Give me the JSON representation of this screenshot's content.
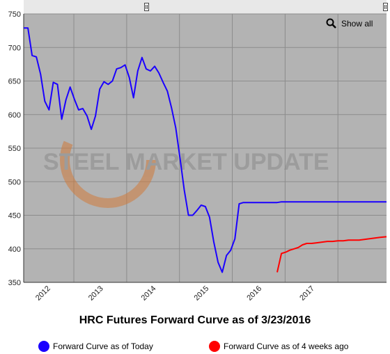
{
  "chart_data": {
    "type": "line",
    "title": "HRC Futures Forward Curve as of 3/23/2016",
    "xlabel": "",
    "ylabel": "",
    "ylim": [
      350,
      750
    ],
    "yticks": [
      350,
      400,
      450,
      500,
      550,
      600,
      650,
      700,
      750
    ],
    "xticks": [
      "2012",
      "2013",
      "2014",
      "2015",
      "2016",
      "2017"
    ],
    "xlim": [
      2011.05,
      2017.92
    ],
    "grid": true,
    "legend_position": "bottom",
    "background_color": "#b3b3b3",
    "watermark": "STEEL MARKET UPDATE",
    "series": [
      {
        "name": "Forward Curve as of Today",
        "color": "#1a00ff",
        "x": [
          2011.05,
          2011.13,
          2011.21,
          2011.29,
          2011.37,
          2011.45,
          2011.53,
          2011.61,
          2011.69,
          2011.77,
          2011.85,
          2011.93,
          2012.01,
          2012.09,
          2012.17,
          2012.25,
          2012.33,
          2012.41,
          2012.49,
          2012.57,
          2012.65,
          2012.73,
          2012.81,
          2012.89,
          2012.97,
          2013.05,
          2013.13,
          2013.21,
          2013.29,
          2013.37,
          2013.45,
          2013.53,
          2013.61,
          2013.69,
          2013.77,
          2013.85,
          2013.93,
          2014.01,
          2014.09,
          2014.17,
          2014.25,
          2014.33,
          2014.41,
          2014.49,
          2014.57,
          2014.65,
          2014.73,
          2014.81,
          2014.89,
          2014.97,
          2015.05,
          2015.13,
          2015.21,
          2015.29,
          2015.37,
          2015.45,
          2015.53,
          2015.61,
          2015.69,
          2015.77,
          2015.85,
          2015.93,
          2016.01,
          2016.09,
          2016.17,
          2016.25,
          2016.33,
          2016.5,
          2016.75,
          2017.0,
          2017.5,
          2017.92
        ],
        "values": [
          729,
          729,
          688,
          686,
          660,
          620,
          607,
          648,
          645,
          593,
          622,
          641,
          623,
          607,
          609,
          598,
          578,
          598,
          638,
          649,
          645,
          650,
          668,
          670,
          674,
          655,
          625,
          665,
          685,
          668,
          665,
          672,
          662,
          648,
          635,
          610,
          580,
          535,
          488,
          450,
          450,
          457,
          465,
          463,
          447,
          410,
          380,
          365,
          390,
          398,
          415,
          467,
          469,
          469,
          469,
          469,
          469,
          469,
          469,
          469,
          469,
          470,
          470,
          470,
          470,
          470,
          470,
          470,
          470,
          470,
          470,
          470
        ]
      },
      {
        "name": "Forward Curve as of 4 weeks ago",
        "color": "#ff0000",
        "x": [
          2015.85,
          2015.93,
          2016.01,
          2016.09,
          2016.17,
          2016.25,
          2016.33,
          2016.41,
          2016.5,
          2016.6,
          2016.7,
          2016.8,
          2016.9,
          2017.0,
          2017.1,
          2017.2,
          2017.3,
          2017.4,
          2017.5,
          2017.6,
          2017.7,
          2017.8,
          2017.92
        ],
        "values": [
          365,
          393,
          395,
          398,
          400,
          402,
          406,
          408,
          408,
          409,
          410,
          411,
          411,
          412,
          412,
          413,
          413,
          413,
          414,
          415,
          416,
          417,
          418
        ]
      }
    ]
  },
  "ui": {
    "show_all_label": "Show all"
  }
}
